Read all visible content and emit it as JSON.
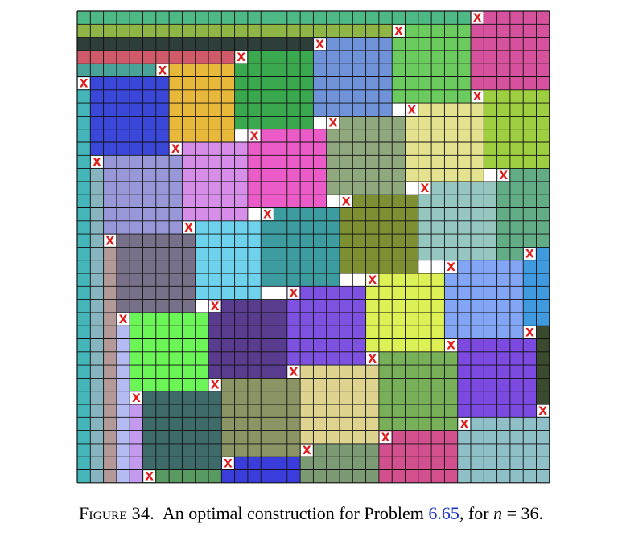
{
  "figure": {
    "grid_n": 36,
    "marker_label": "X",
    "marker_color": "#e21b1b",
    "line_color": "#111111",
    "rectangles": [
      {
        "c": 0,
        "r": 0,
        "w": 30,
        "h": 1,
        "color": "#4fb985"
      },
      {
        "c": 0,
        "r": 1,
        "w": 24,
        "h": 1,
        "color": "#8fb547"
      },
      {
        "c": 0,
        "r": 2,
        "w": 18,
        "h": 1,
        "color": "#2e3e3a"
      },
      {
        "c": 0,
        "r": 3,
        "w": 12,
        "h": 1,
        "color": "#d05a6a"
      },
      {
        "c": 0,
        "r": 4,
        "w": 6,
        "h": 1,
        "color": "#4aa398"
      },
      {
        "c": 30,
        "r": 0,
        "w": 6,
        "h": 6,
        "color": "#d6529c"
      },
      {
        "c": 24,
        "r": 1,
        "w": 6,
        "h": 6,
        "color": "#6bcb5e"
      },
      {
        "c": 18,
        "r": 2,
        "w": 6,
        "h": 6,
        "color": "#6f92d8"
      },
      {
        "c": 12,
        "r": 3,
        "w": 6,
        "h": 6,
        "color": "#3aa84e"
      },
      {
        "c": 6,
        "r": 4,
        "w": 6,
        "h": 6,
        "color": "#e8b83a"
      },
      {
        "c": 0,
        "r": 5,
        "w": 1,
        "h": 31,
        "color": "#44b5b8"
      },
      {
        "c": 1,
        "r": 5,
        "w": 6,
        "h": 6,
        "color": "#3a47d8"
      },
      {
        "c": 30,
        "r": 6,
        "w": 6,
        "h": 6,
        "color": "#9ecf40"
      },
      {
        "c": 25,
        "r": 7,
        "w": 6,
        "h": 6,
        "color": "#e4e18f"
      },
      {
        "c": 19,
        "r": 8,
        "w": 6,
        "h": 6,
        "color": "#8fa87e"
      },
      {
        "c": 13,
        "r": 9,
        "w": 6,
        "h": 6,
        "color": "#ec5cc8"
      },
      {
        "c": 7,
        "r": 10,
        "w": 6,
        "h": 6,
        "color": "#d68ee9"
      },
      {
        "c": 1,
        "r": 11,
        "w": 1,
        "h": 25,
        "color": "#88b4c0"
      },
      {
        "c": 2,
        "r": 11,
        "w": 6,
        "h": 6,
        "color": "#9897d8"
      },
      {
        "c": 32,
        "r": 12,
        "w": 4,
        "h": 7,
        "color": "#62ad86"
      },
      {
        "c": 26,
        "r": 13,
        "w": 6,
        "h": 6,
        "color": "#96c6c0"
      },
      {
        "c": 20,
        "r": 14,
        "w": 6,
        "h": 6,
        "color": "#7e8e33"
      },
      {
        "c": 14,
        "r": 15,
        "w": 6,
        "h": 6,
        "color": "#3c9ca0"
      },
      {
        "c": 8,
        "r": 16,
        "w": 6,
        "h": 6,
        "color": "#6fd2ec"
      },
      {
        "c": 2,
        "r": 17,
        "w": 1,
        "h": 19,
        "color": "#b39a98"
      },
      {
        "c": 3,
        "r": 17,
        "w": 6,
        "h": 6,
        "color": "#777088"
      },
      {
        "c": 34,
        "r": 18,
        "w": 2,
        "h": 6,
        "color": "#3f9ae0"
      },
      {
        "c": 28,
        "r": 19,
        "w": 6,
        "h": 6,
        "color": "#82a6f5"
      },
      {
        "c": 22,
        "r": 20,
        "w": 6,
        "h": 6,
        "color": "#ddf055"
      },
      {
        "c": 16,
        "r": 21,
        "w": 6,
        "h": 6,
        "color": "#7d52e0"
      },
      {
        "c": 10,
        "r": 22,
        "w": 6,
        "h": 6,
        "color": "#5a3c8e"
      },
      {
        "c": 3,
        "r": 23,
        "w": 1,
        "h": 13,
        "color": "#b3bbf2"
      },
      {
        "c": 4,
        "r": 23,
        "w": 6,
        "h": 6,
        "color": "#6cf556"
      },
      {
        "c": 35,
        "r": 24,
        "w": 1,
        "h": 6,
        "color": "#3a4a2e"
      },
      {
        "c": 29,
        "r": 25,
        "w": 6,
        "h": 6,
        "color": "#7c4ae0"
      },
      {
        "c": 23,
        "r": 26,
        "w": 6,
        "h": 6,
        "color": "#78b05a"
      },
      {
        "c": 17,
        "r": 27,
        "w": 6,
        "h": 6,
        "color": "#ded48f"
      },
      {
        "c": 11,
        "r": 28,
        "w": 6,
        "h": 6,
        "color": "#8a9464"
      },
      {
        "c": 4,
        "r": 29,
        "w": 1,
        "h": 7,
        "color": "#c49aee"
      },
      {
        "c": 5,
        "r": 29,
        "w": 6,
        "h": 6,
        "color": "#3e6a6a"
      },
      {
        "c": 35,
        "r": 30,
        "w": 1,
        "h": 6,
        "color": "#8fc0c8"
      },
      {
        "c": 29,
        "r": 31,
        "w": 6,
        "h": 5,
        "color": "#8fc0c8"
      },
      {
        "c": 23,
        "r": 32,
        "w": 6,
        "h": 4,
        "color": "#d2508e"
      },
      {
        "c": 17,
        "r": 33,
        "w": 6,
        "h": 3,
        "color": "#7c9a74"
      },
      {
        "c": 11,
        "r": 34,
        "w": 6,
        "h": 2,
        "color": "#3a3cdc"
      },
      {
        "c": 5,
        "r": 35,
        "w": 6,
        "h": 1,
        "color": "#589a62"
      }
    ],
    "markers": [
      [
        30,
        0
      ],
      [
        24,
        1
      ],
      [
        18,
        2
      ],
      [
        12,
        3
      ],
      [
        6,
        4
      ],
      [
        0,
        5
      ],
      [
        30,
        6
      ],
      [
        25,
        7
      ],
      [
        19,
        8
      ],
      [
        13,
        9
      ],
      [
        7,
        10
      ],
      [
        1,
        11
      ],
      [
        32,
        12
      ],
      [
        26,
        13
      ],
      [
        20,
        14
      ],
      [
        14,
        15
      ],
      [
        8,
        16
      ],
      [
        2,
        17
      ],
      [
        34,
        18
      ],
      [
        28,
        19
      ],
      [
        22,
        20
      ],
      [
        16,
        21
      ],
      [
        10,
        22
      ],
      [
        3,
        23
      ],
      [
        34,
        24
      ],
      [
        28,
        25
      ],
      [
        22,
        26
      ],
      [
        16,
        27
      ],
      [
        10,
        28
      ],
      [
        4,
        29
      ],
      [
        35,
        30
      ],
      [
        29,
        31
      ],
      [
        23,
        32
      ],
      [
        17,
        33
      ],
      [
        11,
        34
      ],
      [
        5,
        35
      ]
    ]
  },
  "caption": {
    "label": "Figure 34.",
    "text_before": "An optimal construction for Problem",
    "problem_ref": "6.65",
    "text_middle": ", for",
    "variable": "n",
    "text_after": "= 36."
  }
}
